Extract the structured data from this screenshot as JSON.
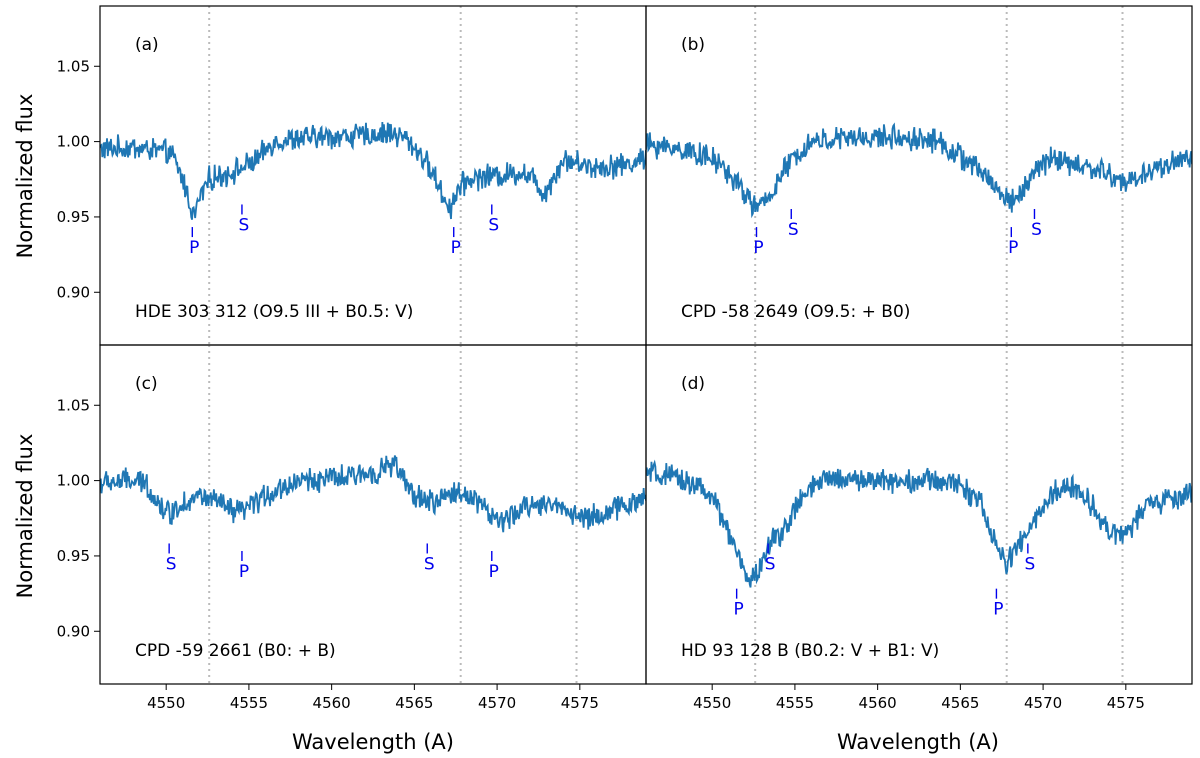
{
  "chart_data": {
    "type": "line",
    "xlabel": "Wavelength (A)",
    "ylabel": "Normalized flux",
    "xlim": [
      4546,
      4579
    ],
    "ylim": [
      0.865,
      1.09
    ],
    "xticks": [
      4550,
      4555,
      4560,
      4565,
      4570,
      4575
    ],
    "yticks": [
      0.9,
      0.95,
      1.0,
      1.05
    ],
    "ytick_labels": [
      "0.90",
      "0.95",
      "1.00",
      "1.05"
    ],
    "reference_lines": [
      4552.6,
      4567.8,
      4574.8
    ],
    "line_color": "#1f77b4",
    "panels": [
      {
        "tag": "(a)",
        "label": "HDE 303 312  (O9.5 III + B0.5: V)",
        "baseline": [
          [
            4546,
            0.995
          ],
          [
            4548,
            0.996
          ],
          [
            4549.5,
            0.994
          ],
          [
            4550.3,
            0.992
          ],
          [
            4551,
            0.975
          ],
          [
            4551.4,
            0.96
          ],
          [
            4551.7,
            0.95
          ],
          [
            4552,
            0.962
          ],
          [
            4552.6,
            0.975
          ],
          [
            4553.5,
            0.978
          ],
          [
            4554.5,
            0.982
          ],
          [
            4555.5,
            0.988
          ],
          [
            4556.5,
            1.0
          ],
          [
            4559,
            1.003
          ],
          [
            4562,
            1.004
          ],
          [
            4563.5,
            1.006
          ],
          [
            4564.5,
            1.002
          ],
          [
            4565.5,
            0.99
          ],
          [
            4566.3,
            0.975
          ],
          [
            4566.8,
            0.962
          ],
          [
            4567.2,
            0.956
          ],
          [
            4567.6,
            0.968
          ],
          [
            4568.3,
            0.975
          ],
          [
            4569.3,
            0.977
          ],
          [
            4570.5,
            0.978
          ],
          [
            4571.5,
            0.98
          ],
          [
            4572.3,
            0.975
          ],
          [
            4572.8,
            0.965
          ],
          [
            4573.2,
            0.972
          ],
          [
            4574,
            0.988
          ],
          [
            4576,
            0.983
          ],
          [
            4578,
            0.985
          ],
          [
            4579,
            0.99
          ]
        ],
        "markers": [
          {
            "letter": "P",
            "x": 4551.7,
            "y": 0.93
          },
          {
            "letter": "S",
            "x": 4554.7,
            "y": 0.945
          },
          {
            "letter": "P",
            "x": 4567.5,
            "y": 0.93
          },
          {
            "letter": "S",
            "x": 4569.8,
            "y": 0.945
          }
        ]
      },
      {
        "tag": "(b)",
        "label": "CPD -58 2649  (O9.5: + B0)",
        "baseline": [
          [
            4546,
            0.998
          ],
          [
            4547.5,
            0.996
          ],
          [
            4549,
            0.993
          ],
          [
            4550.5,
            0.985
          ],
          [
            4551.5,
            0.972
          ],
          [
            4552.2,
            0.962
          ],
          [
            4552.8,
            0.955
          ],
          [
            4553.4,
            0.963
          ],
          [
            4554.2,
            0.978
          ],
          [
            4555,
            0.99
          ],
          [
            4556,
            1.0
          ],
          [
            4558,
            1.002
          ],
          [
            4561,
            1.003
          ],
          [
            4563.5,
            1.001
          ],
          [
            4565,
            0.99
          ],
          [
            4566.5,
            0.978
          ],
          [
            4567.5,
            0.965
          ],
          [
            4568.1,
            0.96
          ],
          [
            4568.8,
            0.968
          ],
          [
            4569.5,
            0.98
          ],
          [
            4570.5,
            0.99
          ],
          [
            4571.5,
            0.985
          ],
          [
            4573,
            0.982
          ],
          [
            4574,
            0.978
          ],
          [
            4575,
            0.972
          ],
          [
            4576,
            0.978
          ],
          [
            4577.5,
            0.985
          ],
          [
            4579,
            0.99
          ]
        ],
        "markers": [
          {
            "letter": "P",
            "x": 4552.8,
            "y": 0.93
          },
          {
            "letter": "S",
            "x": 4554.9,
            "y": 0.942
          },
          {
            "letter": "P",
            "x": 4568.2,
            "y": 0.93
          },
          {
            "letter": "S",
            "x": 4569.6,
            "y": 0.942
          }
        ]
      },
      {
        "tag": "(c)",
        "label": "CPD -59 2661  (B0: + B)",
        "baseline": [
          [
            4546,
            0.998
          ],
          [
            4547.5,
            1.0
          ],
          [
            4548.8,
            0.998
          ],
          [
            4549.5,
            0.985
          ],
          [
            4550.2,
            0.978
          ],
          [
            4551,
            0.985
          ],
          [
            4552,
            0.99
          ],
          [
            4553.2,
            0.985
          ],
          [
            4554.2,
            0.978
          ],
          [
            4555,
            0.982
          ],
          [
            4556,
            0.99
          ],
          [
            4558,
            1.0
          ],
          [
            4561,
            1.002
          ],
          [
            4563,
            1.007
          ],
          [
            4563.8,
            1.012
          ],
          [
            4564.3,
            1.0
          ],
          [
            4565,
            0.99
          ],
          [
            4566.2,
            0.985
          ],
          [
            4567.3,
            0.992
          ],
          [
            4568.5,
            0.99
          ],
          [
            4569.3,
            0.982
          ],
          [
            4570,
            0.972
          ],
          [
            4570.8,
            0.975
          ],
          [
            4572,
            0.985
          ],
          [
            4574,
            0.983
          ],
          [
            4575,
            0.975
          ],
          [
            4576.5,
            0.978
          ],
          [
            4578,
            0.985
          ],
          [
            4579,
            0.988
          ]
        ],
        "markers": [
          {
            "letter": "S",
            "x": 4550.3,
            "y": 0.945
          },
          {
            "letter": "P",
            "x": 4554.7,
            "y": 0.94
          },
          {
            "letter": "S",
            "x": 4565.9,
            "y": 0.945
          },
          {
            "letter": "P",
            "x": 4569.8,
            "y": 0.94
          }
        ]
      },
      {
        "tag": "(d)",
        "label": "HD 93 128 B   (B0.2: V + B1: V)",
        "baseline": [
          [
            4546,
            1.005
          ],
          [
            4547.5,
            1.002
          ],
          [
            4549,
            0.998
          ],
          [
            4550.2,
            0.985
          ],
          [
            4551,
            0.965
          ],
          [
            4551.6,
            0.948
          ],
          [
            4552,
            0.938
          ],
          [
            4552.5,
            0.935
          ],
          [
            4553,
            0.945
          ],
          [
            4553.6,
            0.96
          ],
          [
            4554.5,
            0.97
          ],
          [
            4555.5,
            0.99
          ],
          [
            4557,
            1.002
          ],
          [
            4560,
            1.0
          ],
          [
            4563,
            1.0
          ],
          [
            4565,
            0.998
          ],
          [
            4566.2,
            0.985
          ],
          [
            4566.8,
            0.968
          ],
          [
            4567.3,
            0.952
          ],
          [
            4567.8,
            0.945
          ],
          [
            4568.4,
            0.955
          ],
          [
            4569,
            0.965
          ],
          [
            4569.6,
            0.975
          ],
          [
            4570.5,
            0.99
          ],
          [
            4571.5,
            0.997
          ],
          [
            4572.5,
            0.99
          ],
          [
            4573.5,
            0.975
          ],
          [
            4574.5,
            0.962
          ],
          [
            4575.2,
            0.968
          ],
          [
            4576.2,
            0.982
          ],
          [
            4577.5,
            0.988
          ],
          [
            4579,
            0.99
          ]
        ],
        "markers": [
          {
            "letter": "P",
            "x": 4551.6,
            "y": 0.915
          },
          {
            "letter": "S",
            "x": 4553.5,
            "y": 0.945
          },
          {
            "letter": "P",
            "x": 4567.3,
            "y": 0.915
          },
          {
            "letter": "S",
            "x": 4569.2,
            "y": 0.945
          }
        ]
      }
    ]
  }
}
